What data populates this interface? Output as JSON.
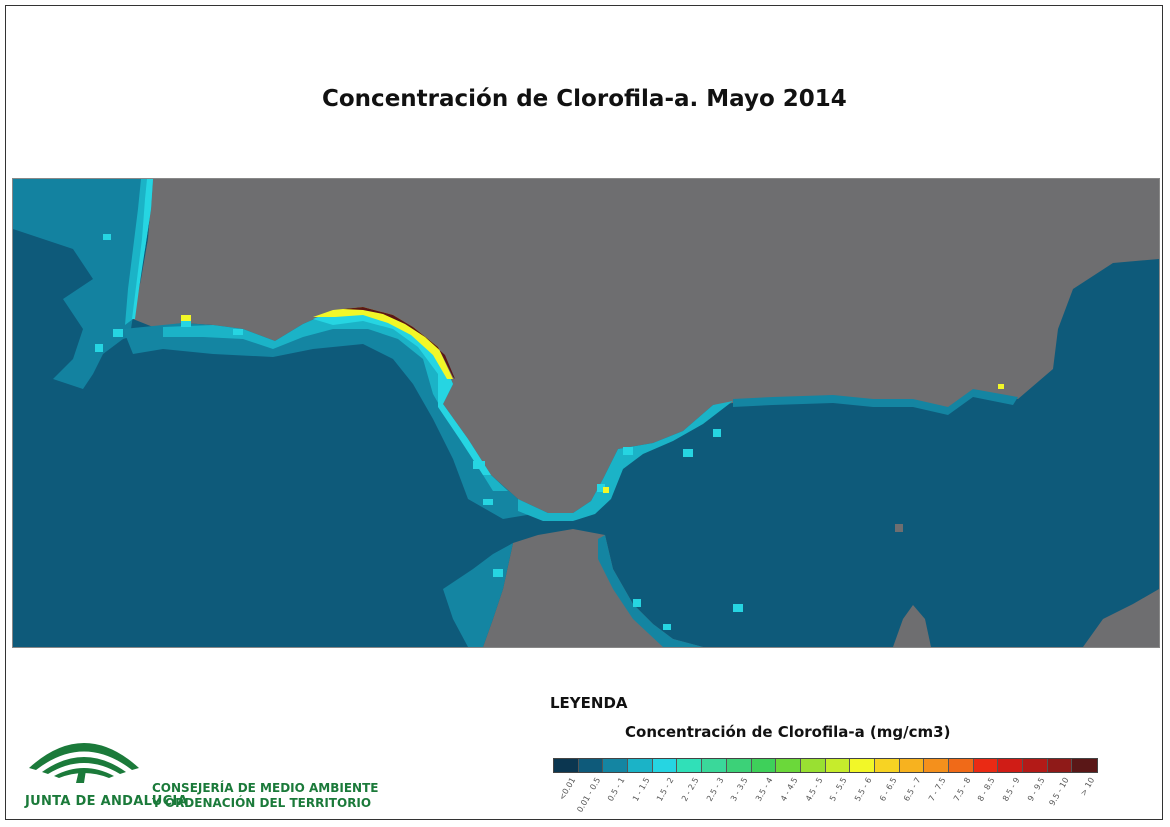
{
  "title": "Concentración de Clorofila-a. Mayo 2014",
  "legend": {
    "heading": "LEYENDA",
    "subtitle": "Concentración de Clorofila-a (mg/cm3)",
    "classes": [
      {
        "label": "<0.01",
        "color": "#0b3650"
      },
      {
        "label": "0.01 - 0.5",
        "color": "#0e5a7a"
      },
      {
        "label": "0.5 - 1",
        "color": "#1485a2"
      },
      {
        "label": "1 - 1.5",
        "color": "#1bb3c7"
      },
      {
        "label": "1.5 - 2",
        "color": "#26d5e2"
      },
      {
        "label": "2 - 2.5",
        "color": "#30e0b8"
      },
      {
        "label": "2.5 - 3",
        "color": "#3ad89a"
      },
      {
        "label": "3 - 3.5",
        "color": "#3cd178"
      },
      {
        "label": "3.5 - 4",
        "color": "#3ed05a"
      },
      {
        "label": "4 - 4.5",
        "color": "#6bd83a"
      },
      {
        "label": "4.5 - 5",
        "color": "#99e032"
      },
      {
        "label": "5 - 5.5",
        "color": "#c6ec2c"
      },
      {
        "label": "5.5 - 6",
        "color": "#f2f728"
      },
      {
        "label": "6 - 6.5",
        "color": "#f7d323"
      },
      {
        "label": "6.5 - 7",
        "color": "#f7b21f"
      },
      {
        "label": "7 - 7.5",
        "color": "#f4901c"
      },
      {
        "label": "7.5 - 8",
        "color": "#f06a18"
      },
      {
        "label": "8 - 8.5",
        "color": "#ea2a14"
      },
      {
        "label": "8.5 - 9",
        "color": "#d01c16"
      },
      {
        "label": "9 - 9.5",
        "color": "#b31a17"
      },
      {
        "label": "9.5 - 10",
        "color": "#8f1a18"
      },
      {
        "label": "> 10",
        "color": "#5a1717"
      }
    ]
  },
  "colors": {
    "land": "#6e6e70",
    "sea": "#0e5a7a",
    "coastal_low": "#1485a2",
    "coastal_mid": "#1bb3c7",
    "coastal_high": "#26d5e2",
    "brand_green": "#1b7a3a"
  },
  "branding": {
    "logo_icon": "junta-andalucia-logo",
    "name": "JUNTA DE ANDALUCIA",
    "department_line1": "CONSEJERÍA DE MEDIO AMBIENTE",
    "department_line2": "Y ORDENACIÓN DEL TERRITORIO"
  }
}
